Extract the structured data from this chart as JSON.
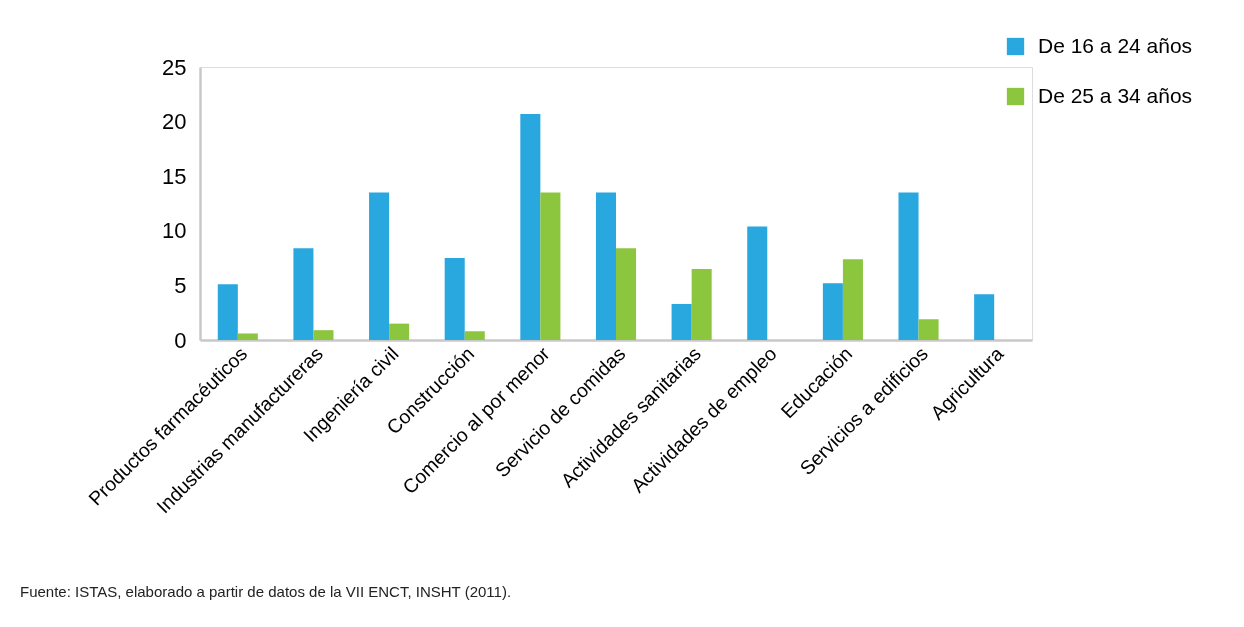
{
  "chart_data": {
    "type": "bar",
    "categories": [
      "Productos farmacéuticos",
      "Industrias manufactureras",
      "Ingeniería civil",
      "Construcción",
      "Comercio al por menor",
      "Servicio de comidas",
      "Actividades sanitarias",
      "Actividades de empleo",
      "Educación",
      "Servicios a edificios",
      "Agricultura"
    ],
    "series": [
      {
        "name": "De 16 a 24 años",
        "color": "#29a7df",
        "values": [
          5.1,
          8.4,
          13.5,
          7.5,
          20.7,
          13.5,
          3.3,
          10.4,
          5.2,
          13.5,
          4.2
        ]
      },
      {
        "name": "De 25 a 34 años",
        "color": "#8cc63f",
        "values": [
          0.6,
          0.9,
          1.5,
          0.8,
          13.5,
          8.4,
          6.5,
          null,
          7.4,
          1.9,
          null
        ]
      }
    ],
    "ylim": [
      0,
      25
    ],
    "yticks": [
      0,
      5,
      10,
      15,
      20,
      25
    ],
    "legend": "top right",
    "annotations": [
      "Fuente: ISTAS, elaborado a partir de datos de la VII ENCT, INSHT (2011)."
    ]
  }
}
